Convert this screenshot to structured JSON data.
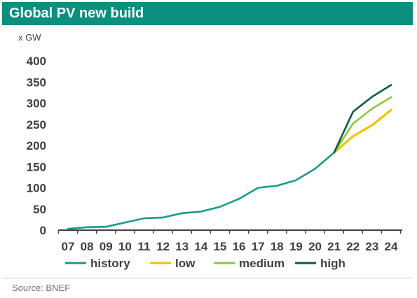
{
  "header": {
    "title": "Global PV new build"
  },
  "unit": "x GW",
  "source": "Source: BNEF",
  "chart_data": {
    "type": "line",
    "title": "Global PV new build",
    "ylabel": "x GW",
    "xlabel": "",
    "ylim": [
      0,
      400
    ],
    "yticks": [
      0,
      50,
      100,
      150,
      200,
      250,
      300,
      350,
      400
    ],
    "categories": [
      "07",
      "08",
      "09",
      "10",
      "11",
      "12",
      "13",
      "14",
      "15",
      "16",
      "17",
      "18",
      "19",
      "20",
      "21",
      "22",
      "23",
      "24"
    ],
    "grid": false,
    "legend_position": "bottom",
    "series": [
      {
        "name": "history",
        "color": "#1a9a8a",
        "values": [
          3,
          7,
          8,
          18,
          28,
          30,
          40,
          44,
          55,
          74,
          100,
          105,
          118,
          145,
          183,
          null,
          null,
          null
        ]
      },
      {
        "name": "low",
        "color": "#f2c200",
        "values": [
          null,
          null,
          null,
          null,
          null,
          null,
          null,
          null,
          null,
          null,
          null,
          null,
          null,
          null,
          183,
          222,
          248,
          284
        ]
      },
      {
        "name": "medium",
        "color": "#8cc63f",
        "values": [
          null,
          null,
          null,
          null,
          null,
          null,
          null,
          null,
          null,
          null,
          null,
          null,
          null,
          null,
          183,
          252,
          287,
          314
        ]
      },
      {
        "name": "high",
        "color": "#0e5a4b",
        "values": [
          null,
          null,
          null,
          null,
          null,
          null,
          null,
          null,
          null,
          null,
          null,
          null,
          null,
          null,
          183,
          280,
          315,
          343
        ]
      }
    ]
  }
}
